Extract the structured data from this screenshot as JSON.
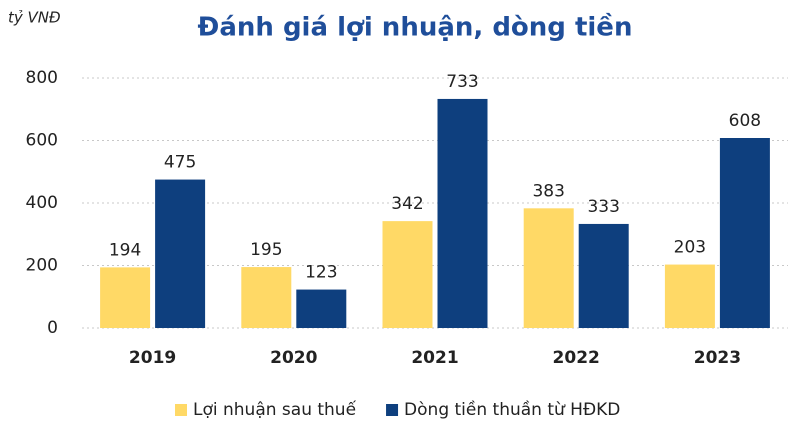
{
  "chart_data": {
    "type": "bar",
    "title": "Đánh giá lợi nhuận, dòng tiền",
    "unit_label": "tỷ VNĐ",
    "categories": [
      "2019",
      "2020",
      "2021",
      "2022",
      "2023"
    ],
    "series": [
      {
        "name": "Lợi nhuận sau thuế",
        "color": "#FFD966",
        "values": [
          194,
          195,
          342,
          383,
          203
        ]
      },
      {
        "name": "Dòng tiền thuần từ HĐKD",
        "color": "#0E3F7E",
        "values": [
          475,
          123,
          733,
          333,
          608
        ]
      }
    ],
    "ylim": [
      0,
      800
    ],
    "yticks": [
      0,
      200,
      400,
      600,
      800
    ],
    "grid": true,
    "legend": "bottom"
  }
}
